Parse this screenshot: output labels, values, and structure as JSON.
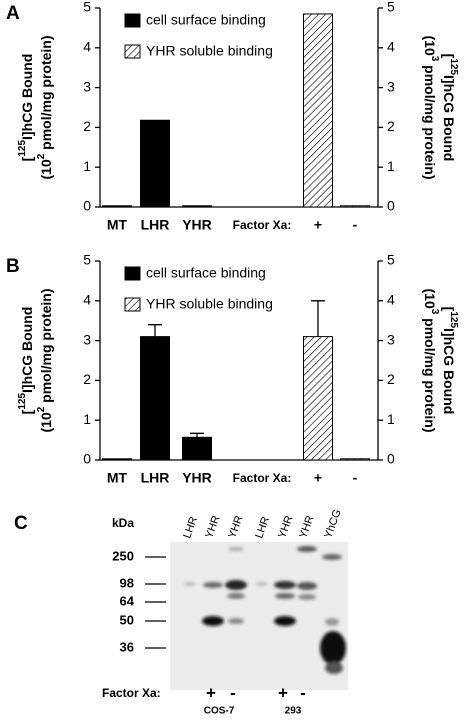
{
  "chart_data": [
    {
      "type": "bar",
      "panel_label": "A",
      "categories": [
        "MT",
        "LHR",
        "YHR",
        "+",
        "-"
      ],
      "x_annotation": "Factor Xa:",
      "ylabel": [
        [
          "[",
          "125",
          "I]hCG Bound"
        ],
        [
          "(10",
          "2",
          " pmol/mg protein)"
        ]
      ],
      "y2label": [
        [
          "[",
          "125",
          "I]hCG Bound"
        ],
        [
          "(10",
          "3",
          " pmol/mg protein)"
        ]
      ],
      "ylim": [
        0,
        5
      ],
      "yticks": [
        0,
        1,
        2,
        3,
        4,
        5
      ],
      "y2lim": [
        0,
        5
      ],
      "y2ticks": [
        0,
        1,
        2,
        3,
        4,
        5
      ],
      "legend": "upper left",
      "series": [
        {
          "name": "cell surface binding",
          "color": "#000000",
          "hatch": false,
          "values": [
            0.03,
            2.18,
            0.03,
            null,
            null
          ]
        },
        {
          "name": "YHR soluble binding",
          "color": "#ffffff",
          "hatch": true,
          "axis": "y2",
          "values": [
            null,
            null,
            null,
            4.85,
            0.03
          ]
        }
      ]
    },
    {
      "type": "bar",
      "panel_label": "B",
      "categories": [
        "MT",
        "LHR",
        "YHR",
        "+",
        "-"
      ],
      "x_annotation": "Factor Xa:",
      "ylabel": [
        [
          "[",
          "125",
          "I]hCG Bound"
        ],
        [
          "(10",
          "2",
          " pmol/mg protein)"
        ]
      ],
      "y2label": [
        [
          "[",
          "125",
          "I]hCG Bound"
        ],
        [
          "(10",
          "3",
          " pmol/mg protein)"
        ]
      ],
      "ylim": [
        0,
        5
      ],
      "yticks": [
        0,
        1,
        2,
        3,
        4,
        5
      ],
      "y2lim": [
        0,
        5
      ],
      "y2ticks": [
        0,
        1,
        2,
        3,
        4,
        5
      ],
      "legend": "upper left",
      "series": [
        {
          "name": "cell surface binding",
          "color": "#000000",
          "hatch": false,
          "values": [
            0.03,
            3.1,
            0.57,
            null,
            null
          ],
          "errors": [
            null,
            0.3,
            0.1,
            null,
            null
          ]
        },
        {
          "name": "YHR soluble binding",
          "color": "#ffffff",
          "hatch": true,
          "axis": "y2",
          "values": [
            null,
            null,
            null,
            3.1,
            0.03
          ],
          "errors": [
            null,
            null,
            null,
            0.9,
            null
          ]
        }
      ]
    }
  ],
  "panel_c": {
    "label": "C",
    "unit": "kDa",
    "lanes": [
      "LHR",
      "YHR",
      "YHR",
      "LHR",
      "YHR",
      "YHR",
      "YhCG"
    ],
    "markers": [
      250,
      98,
      64,
      50,
      36
    ],
    "factor_label": "Factor Xa:",
    "treatments": [
      "+",
      "-",
      "+",
      "-"
    ],
    "cell_lines": [
      "COS-7",
      "293"
    ]
  }
}
